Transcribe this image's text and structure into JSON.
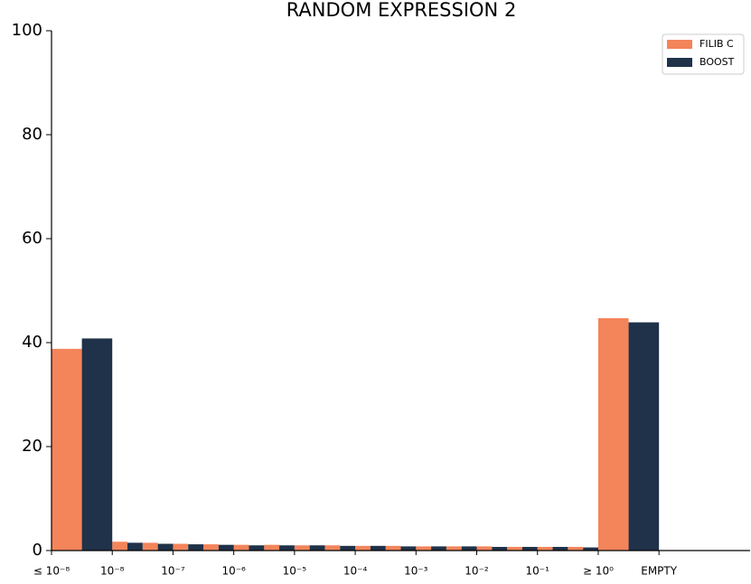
{
  "chart_data": {
    "type": "histogram",
    "title": "RANDOM EXPRESSION 2",
    "bins": [
      0,
      1,
      1.5,
      2,
      2.5,
      3,
      3.5,
      4,
      4.5,
      5,
      5.5,
      6,
      6.5,
      7,
      7.5,
      8,
      8.5,
      9,
      10
    ],
    "series": [
      {
        "name": "FILIB C",
        "color": "#f4845a",
        "values": [
          38.8,
          1.7,
          1.5,
          1.3,
          1.2,
          1.1,
          1.1,
          1.0,
          1.0,
          0.9,
          0.9,
          0.8,
          0.8,
          0.8,
          0.7,
          0.7,
          0.7,
          44.7
        ]
      },
      {
        "name": "BOOST",
        "color": "#1f3249",
        "values": [
          40.8,
          1.5,
          1.3,
          1.2,
          1.1,
          1.0,
          1.0,
          1.0,
          0.9,
          0.9,
          0.8,
          0.8,
          0.8,
          0.7,
          0.7,
          0.7,
          0.6,
          43.9
        ]
      }
    ],
    "xlim": [
      0,
      11.5
    ],
    "xticks": [
      {
        "value": 0,
        "label": "≤ 10⁻⁸"
      },
      {
        "value": 1,
        "label": "10⁻⁸"
      },
      {
        "value": 2,
        "label": "10⁻⁷"
      },
      {
        "value": 3,
        "label": "10⁻⁶"
      },
      {
        "value": 4,
        "label": "10⁻⁵"
      },
      {
        "value": 5,
        "label": "10⁻⁴"
      },
      {
        "value": 6,
        "label": "10⁻³"
      },
      {
        "value": 7,
        "label": "10⁻²"
      },
      {
        "value": 8,
        "label": "10⁻¹"
      },
      {
        "value": 9,
        "label": "≥ 10⁰"
      },
      {
        "value": 10,
        "label": "EMPTY"
      }
    ],
    "ylim": [
      0,
      100
    ],
    "yticks": [
      0,
      20,
      40,
      60,
      80,
      100
    ],
    "legend": "upper right"
  }
}
